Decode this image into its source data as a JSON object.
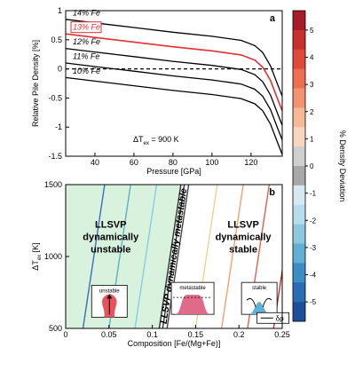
{
  "chart_data": [
    {
      "type": "line",
      "panel_label": "a",
      "xlabel": "Pressure [GPa]",
      "ylabel": "Relative Pile Density [%]",
      "xlim": [
        25,
        136
      ],
      "ylim": [
        -1.5,
        1
      ],
      "xticks": [
        40,
        60,
        80,
        100,
        120
      ],
      "yticks": [
        -1.5,
        -1,
        -0.5,
        0,
        0.5,
        1
      ],
      "annotation": "ΔT",
      "annotation_sub": "ex",
      "annotation_value": " = 900 K",
      "reference_line": {
        "y": 0,
        "style": "dashed"
      },
      "series": [
        {
          "name": "14% Fe",
          "color": "#000000",
          "points": [
            [
              25,
              0.85
            ],
            [
              40,
              0.79
            ],
            [
              60,
              0.71
            ],
            [
              80,
              0.63
            ],
            [
              100,
              0.56
            ],
            [
              115,
              0.49
            ],
            [
              122,
              0.4
            ],
            [
              126,
              0.28
            ],
            [
              130,
              0.05
            ],
            [
              134,
              -0.3
            ],
            [
              136,
              -0.47
            ]
          ]
        },
        {
          "name": "13% Fe",
          "color": "#e03030",
          "highlighted": true,
          "points": [
            [
              25,
              0.6
            ],
            [
              40,
              0.54
            ],
            [
              60,
              0.46
            ],
            [
              80,
              0.38
            ],
            [
              100,
              0.31
            ],
            [
              115,
              0.24
            ],
            [
              122,
              0.15
            ],
            [
              126,
              0.03
            ],
            [
              130,
              -0.2
            ],
            [
              134,
              -0.55
            ],
            [
              136,
              -0.72
            ]
          ]
        },
        {
          "name": "12% Fe",
          "color": "#000000",
          "points": [
            [
              25,
              0.35
            ],
            [
              40,
              0.29
            ],
            [
              60,
              0.21
            ],
            [
              80,
              0.13
            ],
            [
              100,
              0.06
            ],
            [
              115,
              -0.01
            ],
            [
              122,
              -0.1
            ],
            [
              126,
              -0.22
            ],
            [
              130,
              -0.45
            ],
            [
              134,
              -0.8
            ],
            [
              136,
              -0.97
            ]
          ]
        },
        {
          "name": "11% Fe",
          "color": "#000000",
          "points": [
            [
              25,
              0.1
            ],
            [
              40,
              0.04
            ],
            [
              60,
              -0.04
            ],
            [
              80,
              -0.12
            ],
            [
              100,
              -0.19
            ],
            [
              115,
              -0.26
            ],
            [
              122,
              -0.35
            ],
            [
              126,
              -0.47
            ],
            [
              130,
              -0.7
            ],
            [
              134,
              -1.05
            ],
            [
              136,
              -1.22
            ]
          ]
        },
        {
          "name": "10% Fe",
          "color": "#000000",
          "points": [
            [
              25,
              -0.15
            ],
            [
              40,
              -0.21
            ],
            [
              60,
              -0.29
            ],
            [
              80,
              -0.37
            ],
            [
              100,
              -0.44
            ],
            [
              115,
              -0.51
            ],
            [
              122,
              -0.6
            ],
            [
              126,
              -0.72
            ],
            [
              130,
              -0.95
            ],
            [
              134,
              -1.3
            ],
            [
              136,
              -1.47
            ]
          ]
        }
      ]
    },
    {
      "type": "line",
      "panel_label": "b",
      "xlabel": "Composition [Fe/(Mg+Fe)]",
      "ylabel": "ΔT",
      "ylabel_sub": "ex",
      "ylabel_unit": " [K]",
      "xlim": [
        0,
        0.25
      ],
      "ylim": [
        500,
        1500
      ],
      "xticks": [
        0,
        0.05,
        0.1,
        0.15,
        0.2,
        0.25
      ],
      "xtick_labels": [
        "0",
        "0.05",
        "0.1",
        "0.15",
        "0.2",
        "0.25"
      ],
      "yticks": [
        500,
        1000,
        1500
      ],
      "regions": [
        {
          "label_lines": [
            "LLSVP",
            "dynamically",
            "unstable"
          ],
          "x_range": [
            0,
            0.11
          ],
          "color": "#d8f2dd",
          "inset_label": "unstable"
        },
        {
          "label_lines": [
            "LLSVP dynamically metastable"
          ],
          "x_range": [
            0.11,
            0.145
          ],
          "color": "#ffffff",
          "inset_label": "metastable"
        },
        {
          "label_lines": [
            "LLSVP",
            "dynamically",
            "stable"
          ],
          "x_range": [
            0.145,
            0.25
          ],
          "color": "#ffffff",
          "inset_label": "stable"
        }
      ],
      "inset_legend": "δρ",
      "contours": [
        {
          "x_at_500": 0.02,
          "x_at_1500": 0.045,
          "color": "#3a6fb8"
        },
        {
          "x_at_500": 0.05,
          "x_at_1500": 0.075,
          "color": "#5ab0cc"
        },
        {
          "x_at_500": 0.08,
          "x_at_1500": 0.105,
          "color": "#88cce0"
        },
        {
          "x_at_500": 0.108,
          "x_at_1500": 0.133,
          "color": "#333333"
        },
        {
          "x_at_500": 0.112,
          "x_at_1500": 0.137,
          "color": "#333333"
        },
        {
          "x_at_500": 0.117,
          "x_at_1500": 0.142,
          "color": "#444444"
        },
        {
          "x_at_500": 0.15,
          "x_at_1500": 0.175,
          "color": "#f4d08a"
        },
        {
          "x_at_500": 0.18,
          "x_at_1500": 0.205,
          "color": "#f0a070"
        },
        {
          "x_at_500": 0.21,
          "x_at_1500": 0.235,
          "color": "#e06050"
        },
        {
          "x_at_500": 0.24,
          "x_at_1500": 0.265,
          "color": "#c03030"
        }
      ]
    },
    {
      "type": "colorbar",
      "label": "% Density Deviation",
      "ticks": [
        5,
        4,
        3,
        2,
        1,
        0,
        -1,
        -2,
        -3,
        -4,
        -5
      ],
      "bands": [
        "#a51d2a",
        "#c92f2f",
        "#e04a3a",
        "#ed6e52",
        "#f29472",
        "#f6b897",
        "#f8d6be",
        "#cfcfcf",
        "#a8a8a8",
        "#d6e9f3",
        "#b7dcec",
        "#8ec7e0",
        "#5fb0d3",
        "#3c8fc4",
        "#2a6db2",
        "#1f4f99"
      ]
    }
  ]
}
